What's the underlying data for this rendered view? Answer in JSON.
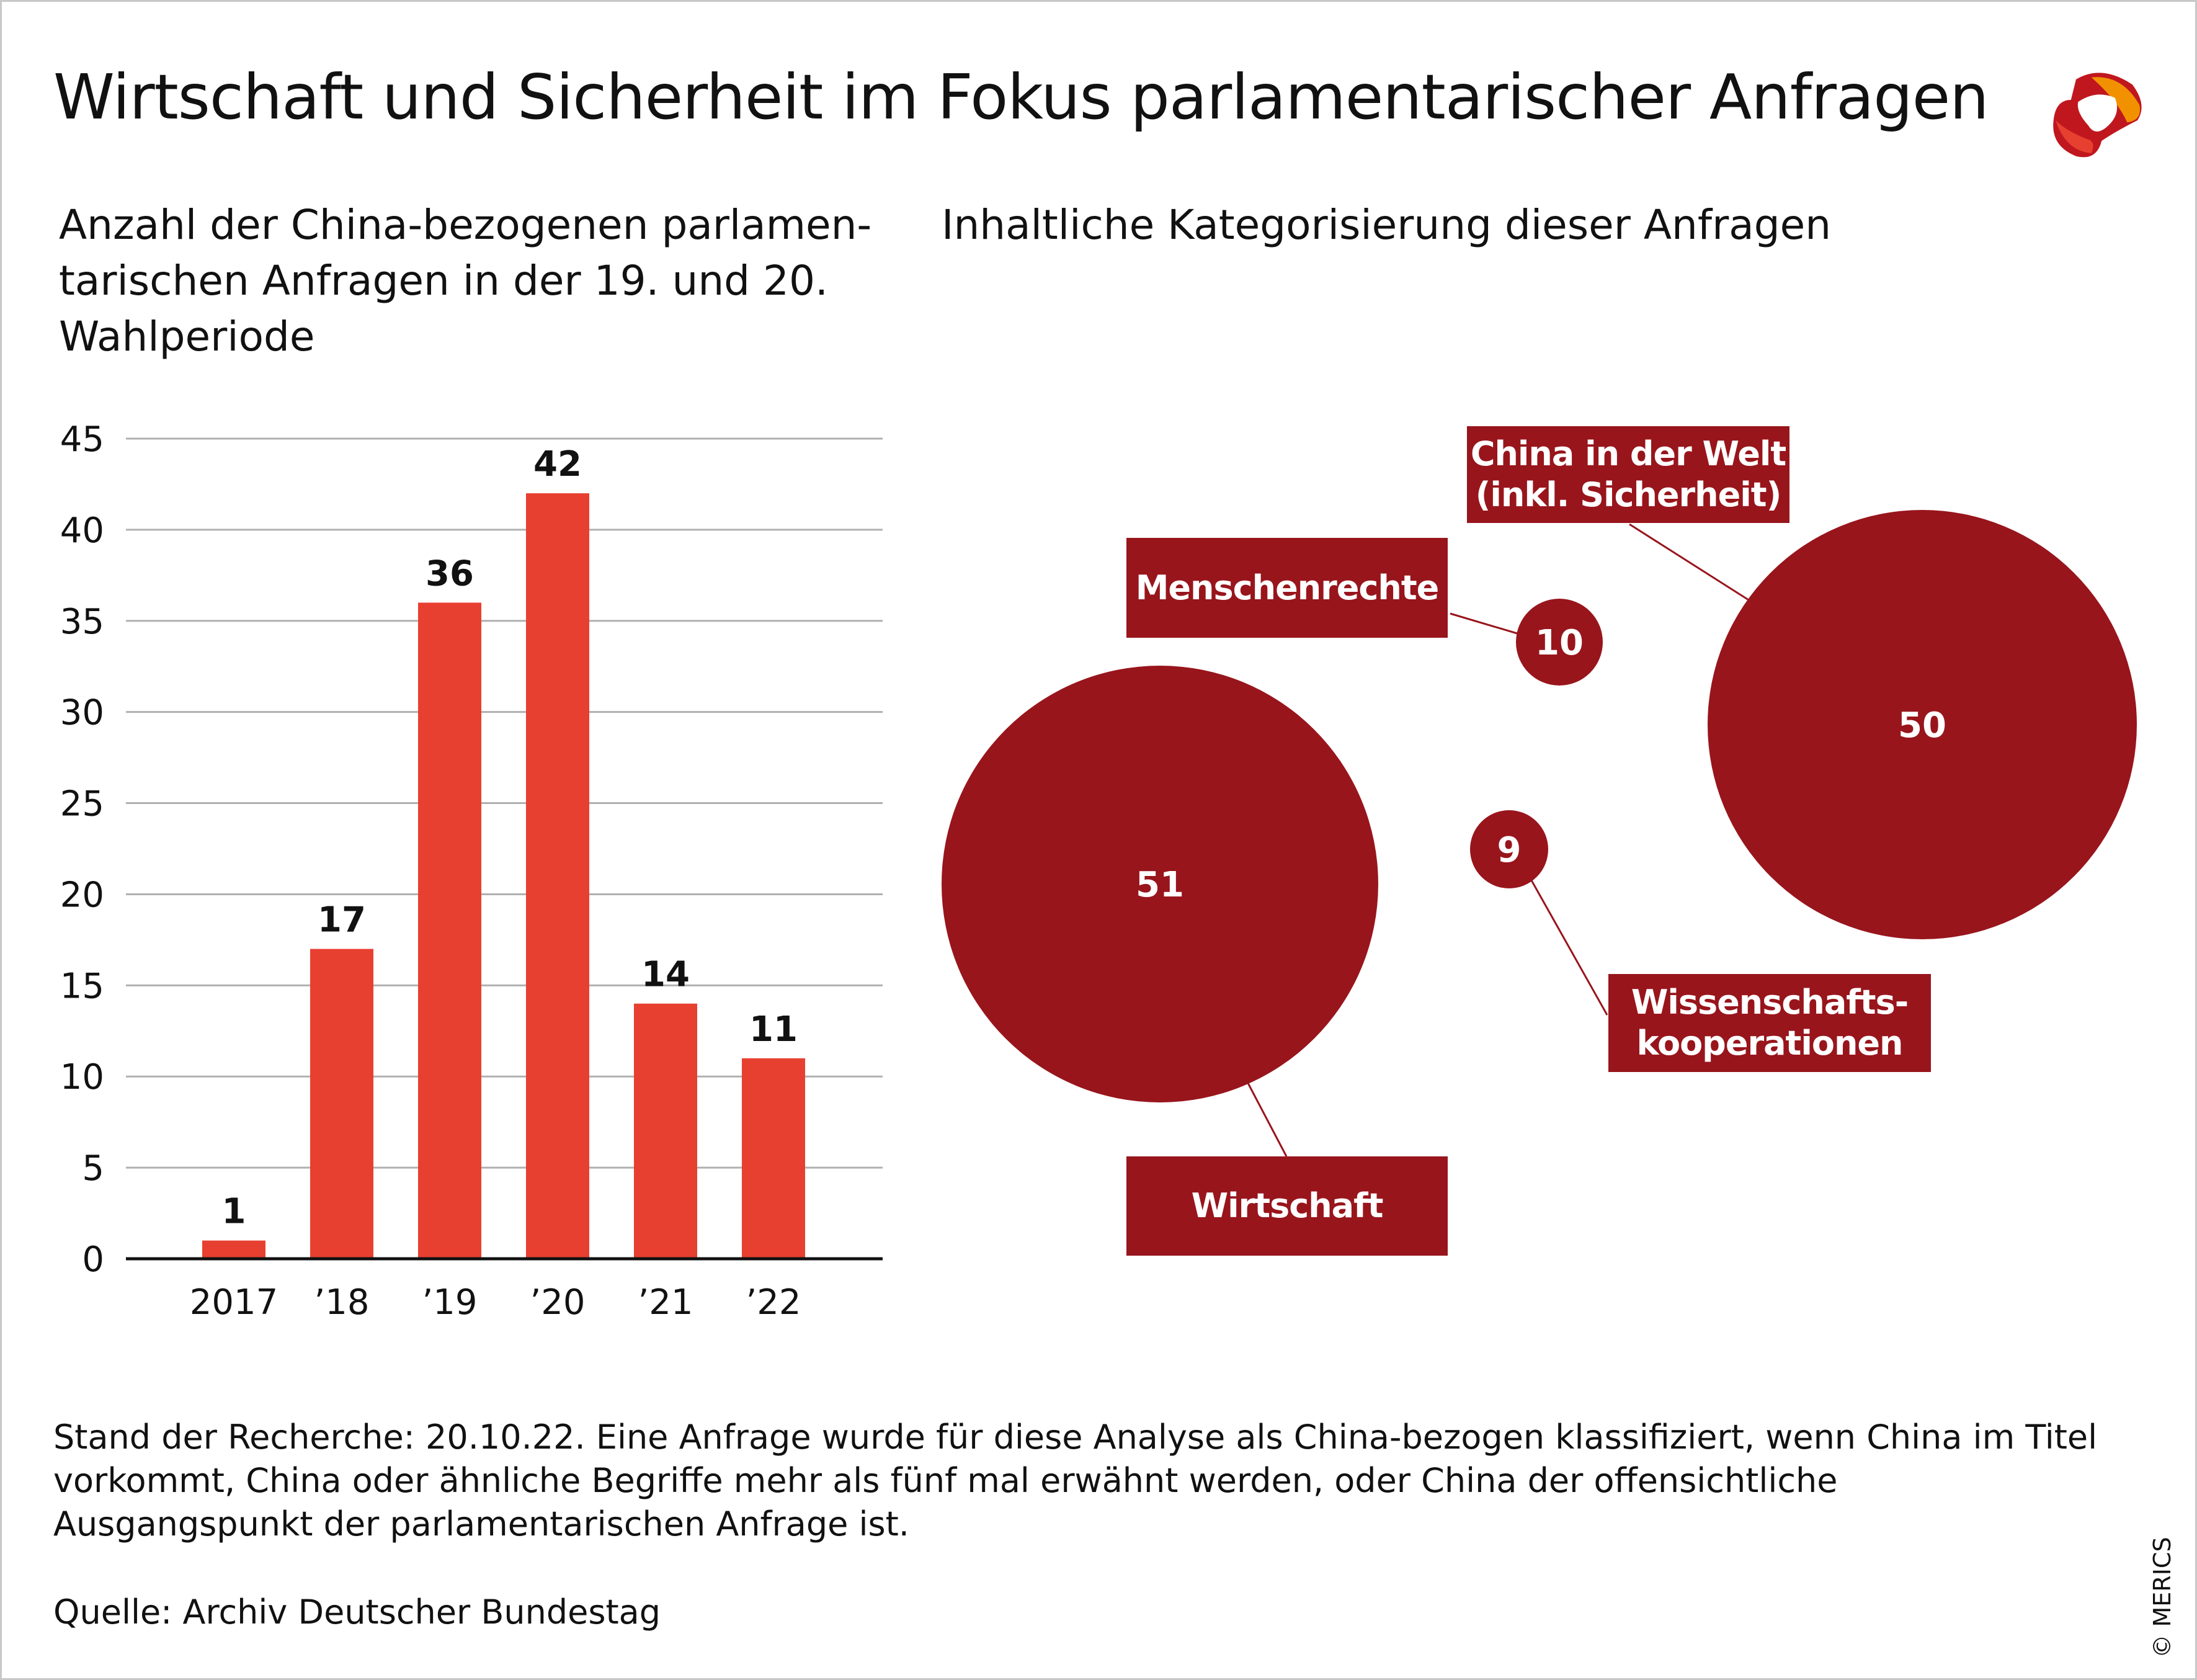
{
  "title": "Wirtschaft und Sicherheit im Fokus parlamentarischer Anfragen",
  "subtitle_left": "Anzahl der China-bezogenen parlamen-tarischen Anfragen in der 19. und 20. Wahlperiode",
  "subtitle_right": "Inhaltliche Kategorisierung dieser Anfragen",
  "footnote": "Stand der Recherche: 20.10.22. Eine Anfrage wurde für diese Analyse als China-bezogen klassifiziert, wenn China im Titel vorkommt, China oder ähnliche Begriffe mehr als fünf mal erwähnt werden, oder China der offensichtliche Ausgangspunkt der parlamentarischen Anfrage ist.",
  "source": "Quelle: Archiv Deutscher Bundestag",
  "copyright": "© MERICS",
  "logo": "MERICS",
  "colors": {
    "bar": "#e84030",
    "bubble": "#98151c",
    "grid": "#b0b0b0"
  },
  "chart_data": [
    {
      "type": "bar",
      "categories": [
        "2017",
        "’18",
        "’19",
        "’20",
        "’21",
        "’22"
      ],
      "values": [
        1,
        17,
        36,
        42,
        14,
        11
      ],
      "ylim": [
        0,
        45
      ],
      "yticks": [
        0,
        5,
        10,
        15,
        20,
        25,
        30,
        35,
        40,
        45
      ],
      "grid": true
    },
    {
      "type": "bubble",
      "items": [
        {
          "label": "Wirtschaft",
          "value": 51
        },
        {
          "label": "China in der Welt (inkl. Sicherheit)",
          "value": 50
        },
        {
          "label": "Menschenrechte",
          "value": 10
        },
        {
          "label": "Wissenschafts-kooperationen",
          "value": 9
        }
      ]
    }
  ]
}
